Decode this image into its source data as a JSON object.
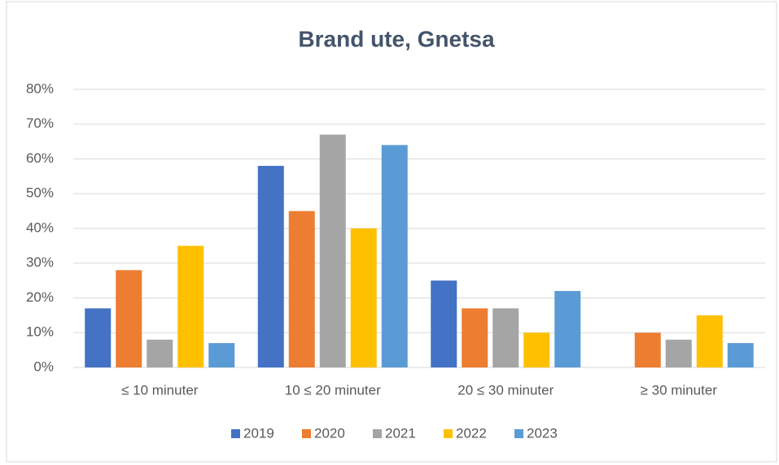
{
  "chart_data": {
    "type": "bar",
    "title": "Brand ute, Gnetsa",
    "categories": [
      "≤ 10 minuter",
      "10 ≤ 20 minuter",
      "20 ≤ 30 minuter",
      "≥ 30 minuter"
    ],
    "series": [
      {
        "name": "2019",
        "color": "#4472c4",
        "values": [
          17,
          58,
          25,
          0
        ]
      },
      {
        "name": "2020",
        "color": "#ed7d31",
        "values": [
          28,
          45,
          17,
          10
        ]
      },
      {
        "name": "2021",
        "color": "#a5a5a5",
        "values": [
          8,
          67,
          17,
          8
        ]
      },
      {
        "name": "2022",
        "color": "#ffc000",
        "values": [
          35,
          40,
          10,
          15
        ]
      },
      {
        "name": "2023",
        "color": "#5b9bd5",
        "values": [
          7,
          64,
          22,
          7
        ]
      }
    ],
    "ylim": [
      0,
      80
    ],
    "yticks": [
      {
        "value": 0,
        "label": "0%"
      },
      {
        "value": 10,
        "label": "10%"
      },
      {
        "value": 20,
        "label": "20%"
      },
      {
        "value": 30,
        "label": "30%"
      },
      {
        "value": 40,
        "label": "40%"
      },
      {
        "value": 50,
        "label": "50%"
      },
      {
        "value": 60,
        "label": "60%"
      },
      {
        "value": 70,
        "label": "70%"
      },
      {
        "value": 80,
        "label": "80%"
      }
    ],
    "grid": true,
    "legend": "bottom"
  }
}
